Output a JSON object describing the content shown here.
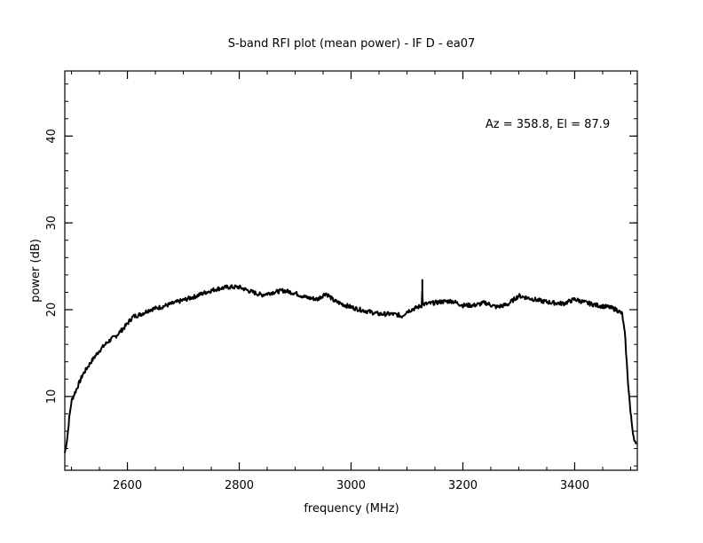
{
  "chart_data": {
    "type": "line",
    "title": "S-band RFI plot (mean power) - IF D - ea07",
    "xlabel": "frequency (MHz)",
    "ylabel": "power (dB)",
    "annotation": "Az = 358.8, El = 87.9",
    "xlim": [
      2488,
      3512
    ],
    "ylim": [
      1.5,
      47.5
    ],
    "xticks": [
      2600,
      2800,
      3000,
      3200,
      3400
    ],
    "xtick_labels": [
      "2600",
      "2800",
      "3000",
      "3200",
      "3400"
    ],
    "yticks": [
      10,
      20,
      30,
      40
    ],
    "ytick_labels": [
      "10",
      "20",
      "30",
      "40"
    ],
    "grid": false,
    "series": [
      {
        "color": "#000000",
        "x": [
          2488,
          2492,
          2496,
          2500,
          2510,
          2520,
          2535,
          2550,
          2565,
          2580,
          2595,
          2610,
          2625,
          2640,
          2660,
          2680,
          2700,
          2720,
          2740,
          2760,
          2780,
          2800,
          2820,
          2840,
          2860,
          2880,
          2900,
          2920,
          2940,
          2955,
          2970,
          2990,
          3010,
          3030,
          3050,
          3070,
          3085,
          3090,
          3100,
          3120,
          3127,
          3127.5,
          3128,
          3140,
          3160,
          3180,
          3200,
          3220,
          3240,
          3260,
          3280,
          3300,
          3320,
          3340,
          3360,
          3380,
          3400,
          3420,
          3440,
          3460,
          3475,
          3485,
          3490,
          3495,
          3500,
          3505,
          3510
        ],
        "y": [
          3.5,
          5.0,
          7.5,
          9.5,
          11.0,
          12.5,
          14.0,
          15.3,
          16.3,
          17.0,
          18.0,
          19.2,
          19.5,
          20.0,
          20.3,
          20.7,
          21.1,
          21.5,
          22.0,
          22.4,
          22.6,
          22.6,
          22.1,
          21.7,
          22.0,
          22.2,
          21.9,
          21.4,
          21.2,
          21.9,
          21.0,
          20.5,
          20.1,
          19.8,
          19.5,
          19.5,
          19.4,
          19.2,
          19.8,
          20.3,
          20.5,
          23.5,
          20.6,
          20.7,
          20.9,
          21.0,
          20.5,
          20.5,
          20.8,
          20.3,
          20.6,
          21.6,
          21.3,
          21.0,
          20.8,
          20.7,
          21.2,
          20.8,
          20.5,
          20.3,
          20.0,
          19.5,
          17.0,
          12.0,
          8.0,
          5.5,
          4.3
        ]
      }
    ]
  }
}
